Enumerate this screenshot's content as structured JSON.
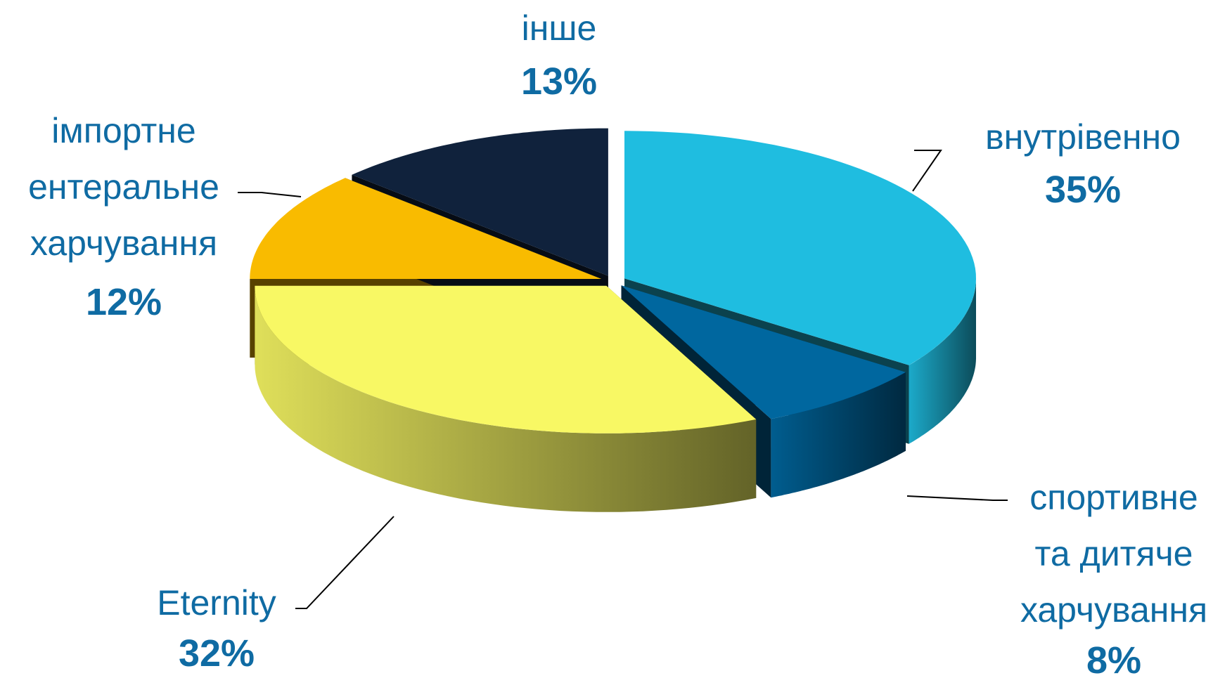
{
  "chart_data": {
    "type": "pie",
    "categories": [
      "внутрівенно",
      "спортивне\nта дитяче\nхарчування",
      "Eternity",
      "імпортне\nентеральне\nхарчування",
      "інше"
    ],
    "values": [
      35,
      8,
      32,
      12,
      13
    ],
    "value_labels": [
      "35%",
      "8%",
      "32%",
      "12%",
      "13%"
    ],
    "colors": [
      "#1fbde0",
      "#00679f",
      "#f8f864",
      "#f9bb00",
      "#10223c"
    ]
  }
}
